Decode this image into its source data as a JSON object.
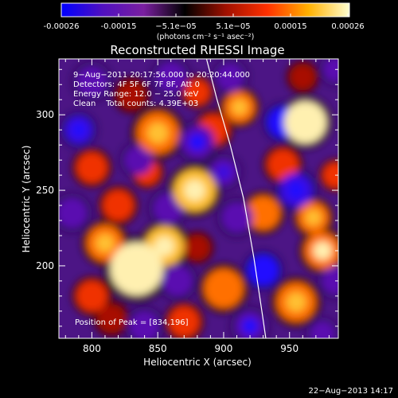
{
  "colorbar": {
    "ticks": [
      "-0.00026",
      "-0.00015",
      "−5.1e−05",
      "5.1e−05",
      "0.00015",
      "0.00026"
    ],
    "units": "(photons cm⁻² s⁻¹ asec⁻²)",
    "colors": [
      "#0000ff",
      "#5010c0",
      "#7a1fa0",
      "#000000",
      "#a01000",
      "#ff3000",
      "#ffb000",
      "#ffffd0"
    ]
  },
  "chart_data": {
    "type": "heatmap",
    "title": "Reconstructed RHESSI Image",
    "xlabel": "Heliocentric X (arcsec)",
    "ylabel": "Heliocentric Y (arcsec)",
    "xlim": [
      775,
      987
    ],
    "ylim": [
      152,
      337
    ],
    "xticks": [
      800,
      850,
      900,
      950
    ],
    "yticks": [
      200,
      250,
      300
    ],
    "clim": [
      -0.00026,
      0.00026
    ],
    "annotations": [
      "9−Aug−2011 20:17:56.000 to 20:20:44.000",
      "Detectors: 4F 5F 6F 7F 8F, Att 0",
      "Energy Range: 12.0 − 25.0 keV",
      "Clean    Total counts: 4.39E+03"
    ],
    "peak_label": "Position of Peak = [834,196]",
    "peak": [
      834,
      196
    ],
    "limb_curve": [
      [
        887,
        337
      ],
      [
        895,
        310
      ],
      [
        905,
        280
      ],
      [
        915,
        245
      ],
      [
        923,
        205
      ],
      [
        929,
        170
      ],
      [
        932,
        152
      ]
    ],
    "blobs": [
      {
        "x": 834,
        "y": 198,
        "v": 0.00026,
        "r": 20
      },
      {
        "x": 855,
        "y": 213,
        "v": 0.00018,
        "r": 15
      },
      {
        "x": 810,
        "y": 215,
        "v": 0.00014,
        "r": 14
      },
      {
        "x": 820,
        "y": 240,
        "v": 0.00011,
        "r": 12
      },
      {
        "x": 800,
        "y": 265,
        "v": 9e-05,
        "r": 12
      },
      {
        "x": 850,
        "y": 288,
        "v": 0.00013,
        "r": 16
      },
      {
        "x": 842,
        "y": 262,
        "v": 8e-05,
        "r": 10
      },
      {
        "x": 830,
        "y": 313,
        "v": 6e-05,
        "r": 11
      },
      {
        "x": 878,
        "y": 250,
        "v": 0.00017,
        "r": 16
      },
      {
        "x": 892,
        "y": 290,
        "v": 0.0001,
        "r": 12
      },
      {
        "x": 880,
        "y": 315,
        "v": 8e-05,
        "r": 10
      },
      {
        "x": 912,
        "y": 305,
        "v": 0.00014,
        "r": 12
      },
      {
        "x": 962,
        "y": 295,
        "v": 0.00024,
        "r": 16
      },
      {
        "x": 945,
        "y": 267,
        "v": 0.0001,
        "r": 12
      },
      {
        "x": 930,
        "y": 235,
        "v": 0.00012,
        "r": 13
      },
      {
        "x": 968,
        "y": 232,
        "v": 0.00014,
        "r": 12
      },
      {
        "x": 975,
        "y": 210,
        "v": 0.00016,
        "r": 14
      },
      {
        "x": 955,
        "y": 176,
        "v": 0.00015,
        "r": 15
      },
      {
        "x": 900,
        "y": 185,
        "v": 0.00012,
        "r": 15
      },
      {
        "x": 870,
        "y": 163,
        "v": 0.00011,
        "r": 12
      },
      {
        "x": 880,
        "y": 212,
        "v": 6e-05,
        "r": 10
      },
      {
        "x": 800,
        "y": 180,
        "v": 8e-05,
        "r": 12
      },
      {
        "x": 815,
        "y": 165,
        "v": 7e-05,
        "r": 11
      },
      {
        "x": 960,
        "y": 325,
        "v": 7e-05,
        "r": 10
      },
      {
        "x": 985,
        "y": 260,
        "v": 9e-05,
        "r": 10
      },
      {
        "x": 858,
        "y": 238,
        "v": -0.0001,
        "r": 12
      },
      {
        "x": 835,
        "y": 270,
        "v": -0.00012,
        "r": 11
      },
      {
        "x": 880,
        "y": 282,
        "v": -0.00014,
        "r": 13
      },
      {
        "x": 945,
        "y": 295,
        "v": -0.00022,
        "r": 12
      },
      {
        "x": 930,
        "y": 197,
        "v": -0.00022,
        "r": 12
      },
      {
        "x": 955,
        "y": 250,
        "v": -0.00018,
        "r": 13
      },
      {
        "x": 900,
        "y": 262,
        "v": -0.00013,
        "r": 11
      },
      {
        "x": 860,
        "y": 325,
        "v": -0.00012,
        "r": 12
      },
      {
        "x": 905,
        "y": 325,
        "v": -0.0001,
        "r": 11
      },
      {
        "x": 800,
        "y": 322,
        "v": -0.00012,
        "r": 12
      },
      {
        "x": 790,
        "y": 290,
        "v": -0.00015,
        "r": 11
      },
      {
        "x": 785,
        "y": 235,
        "v": -0.00012,
        "r": 12
      },
      {
        "x": 865,
        "y": 190,
        "v": -0.0001,
        "r": 12
      },
      {
        "x": 910,
        "y": 232,
        "v": -0.00012,
        "r": 12
      },
      {
        "x": 975,
        "y": 155,
        "v": -0.00012,
        "r": 10
      },
      {
        "x": 985,
        "y": 190,
        "v": -0.0001,
        "r": 11
      },
      {
        "x": 840,
        "y": 160,
        "v": -0.0001,
        "r": 12
      },
      {
        "x": 920,
        "y": 160,
        "v": -0.00014,
        "r": 12
      },
      {
        "x": 985,
        "y": 330,
        "v": -0.0001,
        "r": 10
      }
    ]
  },
  "footer": {
    "timestamp": "22−Aug−2013 14:17"
  }
}
